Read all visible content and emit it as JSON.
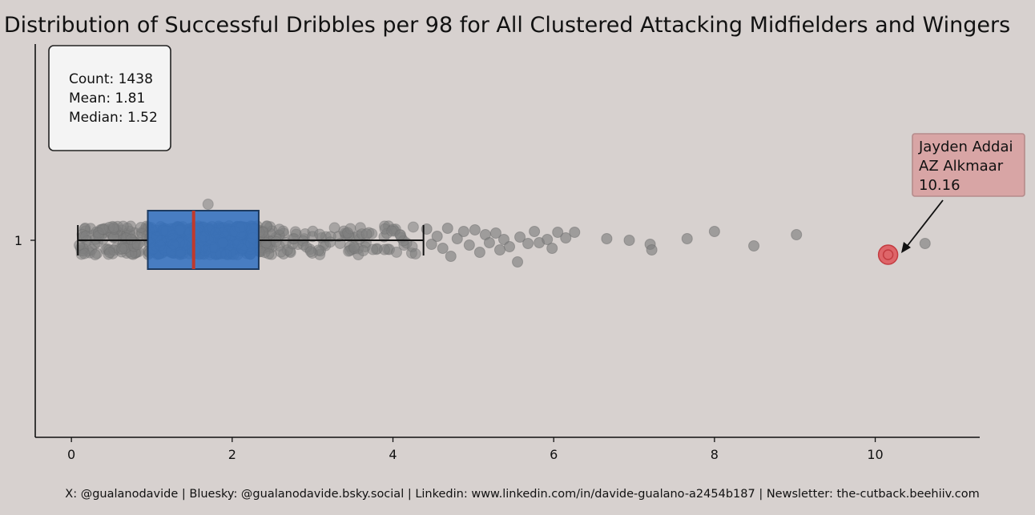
{
  "chart_data": {
    "type": "box",
    "title": "Distribution of Successful Dribbles per 98 for All Clustered Attacking Midfielders and Wingers",
    "xlabel": "",
    "ylabel": "",
    "xlim": [
      -0.45,
      11.3
    ],
    "x_ticks": [
      0,
      2,
      4,
      6,
      8,
      10
    ],
    "x_tick_labels": [
      "0",
      "2",
      "4",
      "6",
      "8",
      "10"
    ],
    "y_tick_labels": [
      "1"
    ],
    "box": {
      "whisker_low": 0.08,
      "q1": 0.95,
      "median": 1.52,
      "q3": 2.33,
      "whisker_high": 4.38,
      "color": "#2f6fbf",
      "median_color": "#c0392b"
    },
    "stats": {
      "count_label": "Count: 1438",
      "mean_label": "Mean: 1.81",
      "median_label": "Median: 1.52"
    },
    "outlier_points": [
      {
        "x": 4.42,
        "jitter": 0.14
      },
      {
        "x": 4.48,
        "jitter": -0.05
      },
      {
        "x": 4.55,
        "jitter": 0.05
      },
      {
        "x": 4.62,
        "jitter": -0.1
      },
      {
        "x": 4.68,
        "jitter": 0.15
      },
      {
        "x": 4.72,
        "jitter": -0.2
      },
      {
        "x": 4.8,
        "jitter": 0.02
      },
      {
        "x": 4.88,
        "jitter": 0.11
      },
      {
        "x": 4.95,
        "jitter": -0.06
      },
      {
        "x": 5.02,
        "jitter": 0.13
      },
      {
        "x": 5.08,
        "jitter": -0.15
      },
      {
        "x": 5.15,
        "jitter": 0.07
      },
      {
        "x": 5.2,
        "jitter": -0.03
      },
      {
        "x": 5.28,
        "jitter": 0.09
      },
      {
        "x": 5.33,
        "jitter": -0.12
      },
      {
        "x": 5.38,
        "jitter": 0.01
      },
      {
        "x": 5.45,
        "jitter": -0.08
      },
      {
        "x": 5.55,
        "jitter": -0.27
      },
      {
        "x": 5.58,
        "jitter": 0.04
      },
      {
        "x": 5.68,
        "jitter": -0.04
      },
      {
        "x": 5.76,
        "jitter": 0.11
      },
      {
        "x": 5.82,
        "jitter": -0.03
      },
      {
        "x": 5.92,
        "jitter": 0.01
      },
      {
        "x": 5.98,
        "jitter": -0.1
      },
      {
        "x": 6.05,
        "jitter": 0.1
      },
      {
        "x": 6.15,
        "jitter": 0.03
      },
      {
        "x": 6.26,
        "jitter": 0.1
      },
      {
        "x": 6.66,
        "jitter": 0.02
      },
      {
        "x": 6.94,
        "jitter": 0.0
      },
      {
        "x": 7.2,
        "jitter": -0.05
      },
      {
        "x": 7.22,
        "jitter": -0.12
      },
      {
        "x": 7.66,
        "jitter": 0.02
      },
      {
        "x": 8.0,
        "jitter": 0.11
      },
      {
        "x": 8.49,
        "jitter": -0.07
      },
      {
        "x": 9.02,
        "jitter": 0.07
      },
      {
        "x": 10.62,
        "jitter": -0.04
      }
    ],
    "highlight": {
      "x": 10.16,
      "jitter": -0.18,
      "color": "#e04a4f",
      "label_name": "Jayden Addai",
      "label_team": "AZ Alkmaar",
      "label_value": "10.16"
    },
    "point_color": "#7f7f7f",
    "background": "#d7d1cf"
  },
  "footer": "X: @gualanodavide | Bluesky: @gualanodavide.bsky.social | Linkedin: www.linkedin.com/in/davide-gualano-a2454b187 | Newsletter: the-cutback.beehiiv.com"
}
